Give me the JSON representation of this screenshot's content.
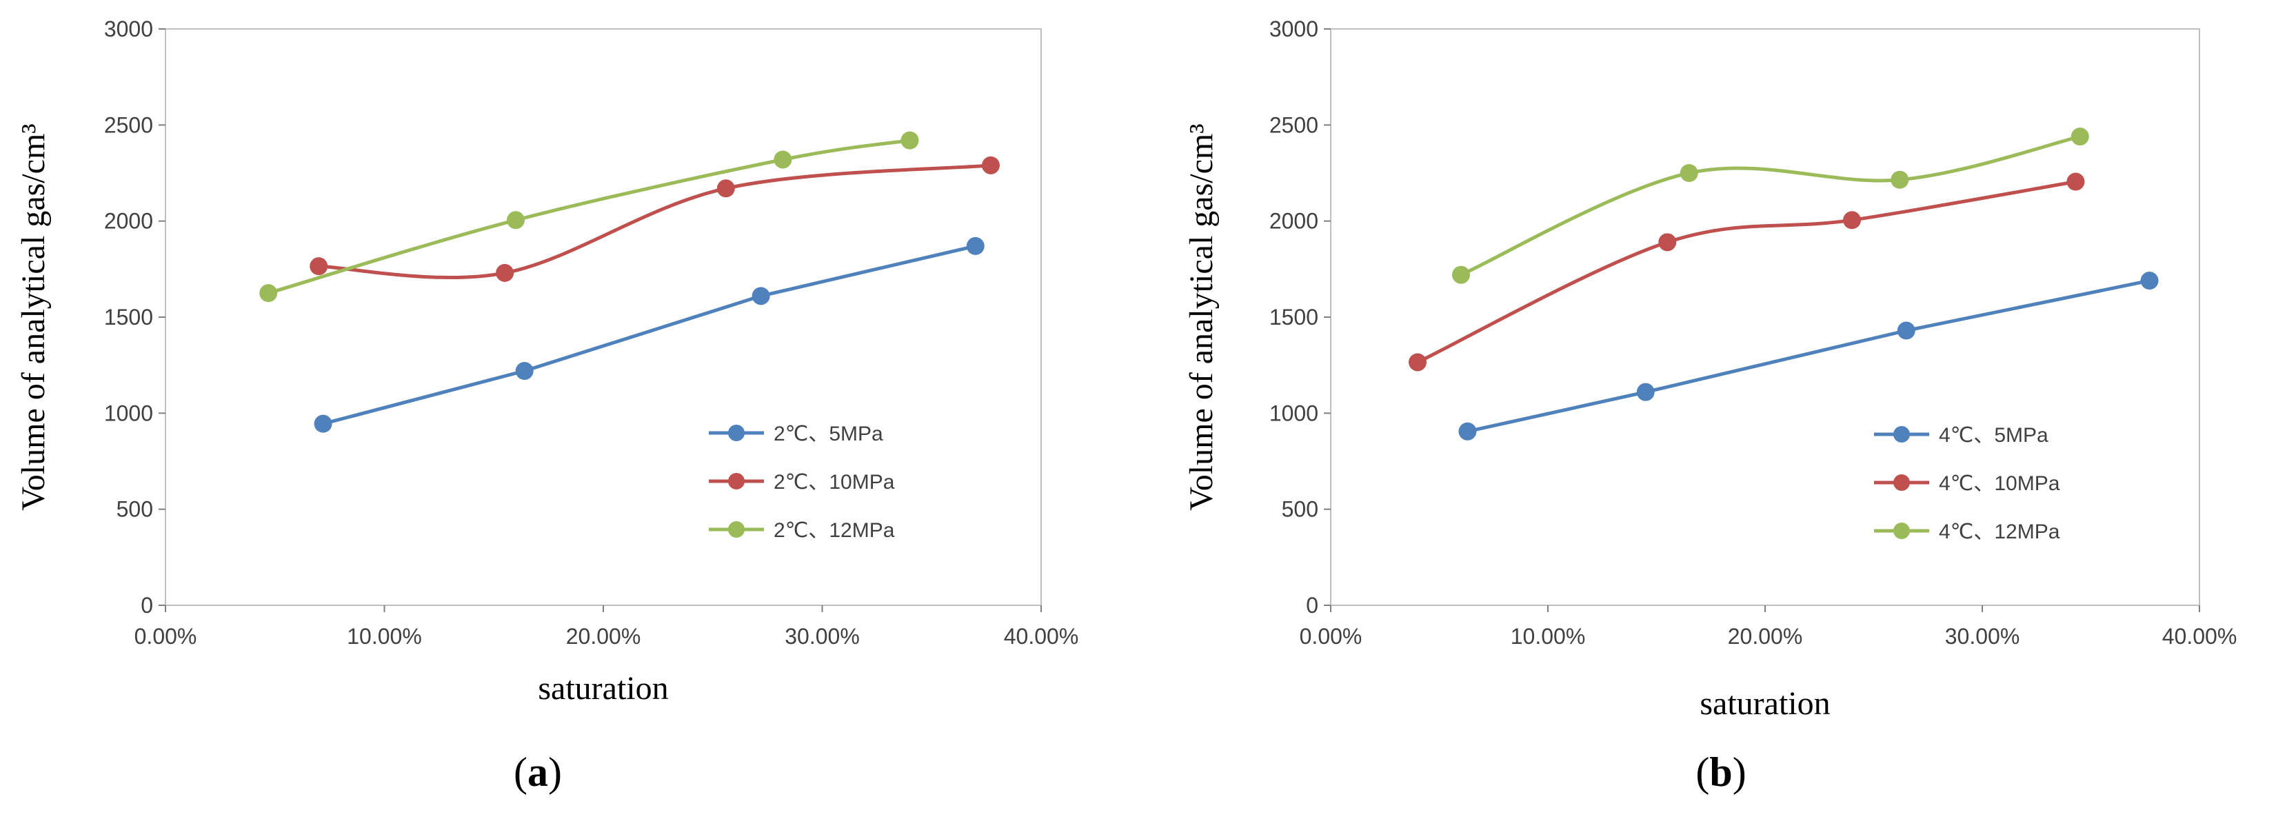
{
  "chart_data": [
    {
      "type": "line",
      "panel_label": "a",
      "xlabel": "saturation",
      "ylabel": "Volume of analytical gas/cm³",
      "xlim": [
        0,
        0.4
      ],
      "ylim": [
        0,
        3000
      ],
      "x_ticks": [
        "0.00%",
        "10.00%",
        "20.00%",
        "30.00%",
        "40.00%"
      ],
      "y_ticks": [
        "0",
        "500",
        "1000",
        "1500",
        "2000",
        "2500",
        "3000"
      ],
      "legend_position": "bottom-right",
      "series": [
        {
          "name": "2℃、5MPa",
          "color": "#4f81bd",
          "x": [
            0.072,
            0.164,
            0.272,
            0.37
          ],
          "y": [
            945,
            1220,
            1610,
            1870
          ]
        },
        {
          "name": "2℃、10MPa",
          "color": "#c0504d",
          "x": [
            0.07,
            0.155,
            0.256,
            0.377
          ],
          "y": [
            1765,
            1730,
            2170,
            2290
          ]
        },
        {
          "name": "2℃、12MPa",
          "color": "#9bbb59",
          "x": [
            0.047,
            0.16,
            0.282,
            0.34
          ],
          "y": [
            1625,
            2005,
            2320,
            2420
          ]
        }
      ]
    },
    {
      "type": "line",
      "panel_label": "b",
      "xlabel": "saturation",
      "ylabel": "Volume of analytical gas/cm³",
      "xlim": [
        0,
        0.4
      ],
      "ylim": [
        0,
        3000
      ],
      "x_ticks": [
        "0.00%",
        "10.00%",
        "20.00%",
        "30.00%",
        "40.00%"
      ],
      "y_ticks": [
        "0",
        "500",
        "1000",
        "1500",
        "2000",
        "2500",
        "3000"
      ],
      "legend_position": "bottom-right",
      "series": [
        {
          "name": "4℃、5MPa",
          "color": "#4f81bd",
          "x": [
            0.063,
            0.145,
            0.265,
            0.377
          ],
          "y": [
            905,
            1110,
            1430,
            1690
          ]
        },
        {
          "name": "4℃、10MPa",
          "color": "#c0504d",
          "x": [
            0.04,
            0.155,
            0.24,
            0.343
          ],
          "y": [
            1265,
            1890,
            2005,
            2205
          ]
        },
        {
          "name": "4℃、12MPa",
          "color": "#9bbb59",
          "x": [
            0.06,
            0.165,
            0.262,
            0.345
          ],
          "y": [
            1720,
            2250,
            2215,
            2440
          ]
        }
      ]
    }
  ]
}
